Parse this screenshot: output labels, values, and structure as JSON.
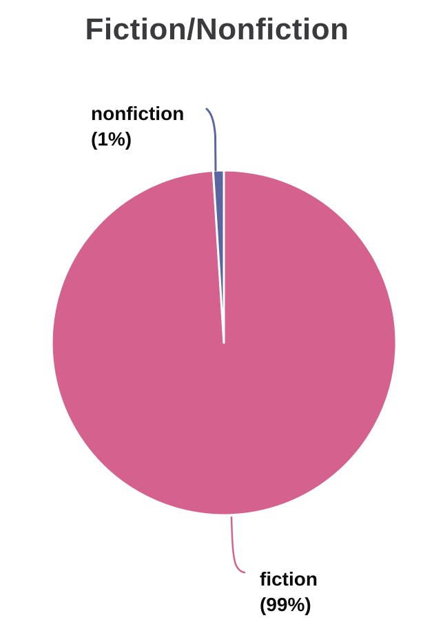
{
  "chart_data": {
    "type": "pie",
    "title": "Fiction/Nonfiction",
    "categories": [
      "fiction",
      "nonfiction"
    ],
    "values": [
      99,
      1
    ],
    "slices": [
      {
        "name": "fiction",
        "value": 99,
        "percent_label": "(99%)",
        "color": "#d5618e"
      },
      {
        "name": "nonfiction",
        "value": 1,
        "percent_label": "(1%)",
        "color": "#5b66a0"
      }
    ],
    "start_angle_deg": 0,
    "direction": "clockwise",
    "slice_gap_color": "#ffffff",
    "legend_position": "none",
    "label_style": "outside labels with curved leader lines",
    "title_color": "#3b3b3f",
    "label_text_color": "#0a0a0a",
    "background": "#ffffff"
  }
}
